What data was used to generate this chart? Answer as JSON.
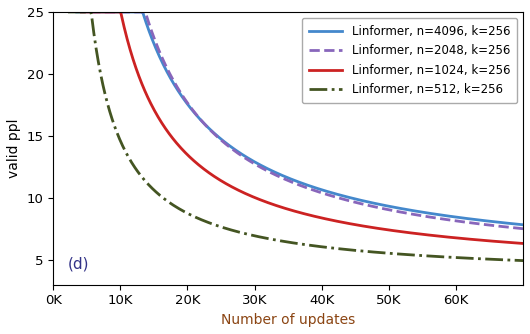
{
  "title": "",
  "xlabel": "Number of updates",
  "ylabel": "valid ppl",
  "xlim": [
    0,
    70000
  ],
  "ylim": [
    3,
    25
  ],
  "yticks": [
    5,
    10,
    15,
    20,
    25
  ],
  "xticks": [
    0,
    10000,
    20000,
    30000,
    40000,
    50000,
    60000
  ],
  "xtick_labels": [
    "0K",
    "10K",
    "20K",
    "30K",
    "40K",
    "50K",
    "60K"
  ],
  "annotation": "(d)",
  "legend_entries": [
    {
      "label": "Linformer, n=4096, k=256",
      "color": "#4488cc",
      "linestyle": "solid",
      "linewidth": 2.0
    },
    {
      "label": "Linformer, n=2048, k=256",
      "color": "#8866bb",
      "linestyle": "dashed",
      "linewidth": 2.0
    },
    {
      "label": "Linformer, n=1024, k=256",
      "color": "#cc2222",
      "linestyle": "solid",
      "linewidth": 2.0
    },
    {
      "label": "Linformer, n=512, k=256",
      "color": "#445522",
      "linestyle": "dashdot",
      "linewidth": 2.0
    }
  ],
  "xlabel_color": "#8B4513",
  "background_color": "#ffffff",
  "curves": [
    {
      "x0": 3500,
      "y_floor": 4.2,
      "a": 250000,
      "b": 2200,
      "clip_start": 3500
    },
    {
      "x0": 5500,
      "y_floor": 3.85,
      "a": 250000,
      "b": 3600,
      "clip_start": 5500
    },
    {
      "x0": 4200,
      "y_floor": 3.7,
      "a": 180000,
      "b": 2600,
      "clip_start": 4200
    },
    {
      "x0": 2200,
      "y_floor": 3.5,
      "a": 100000,
      "b": 1200,
      "clip_start": 2200
    }
  ]
}
